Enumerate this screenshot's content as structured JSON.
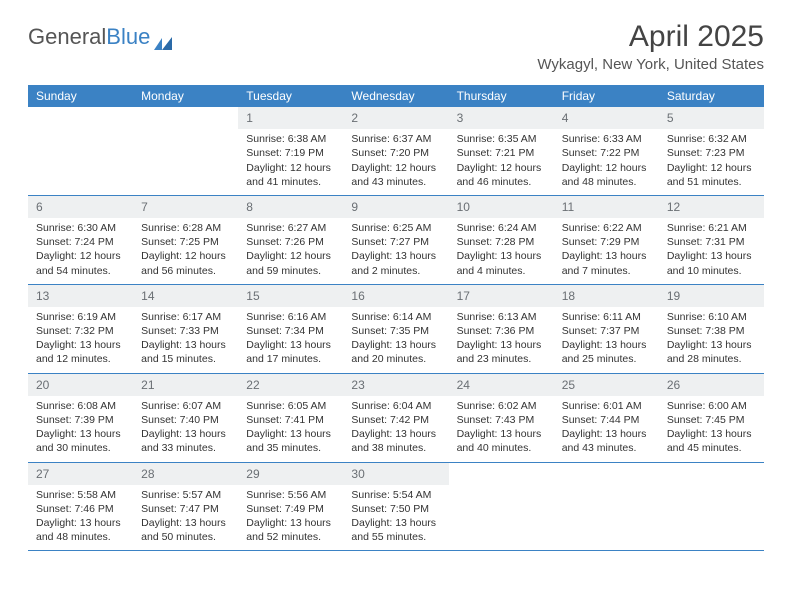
{
  "brand": {
    "part1": "General",
    "part2": "Blue"
  },
  "title": "April 2025",
  "location": "Wykagyl, New York, United States",
  "header_bg": "#3b82c4",
  "daynum_bg": "#eef0f1",
  "dow": [
    "Sunday",
    "Monday",
    "Tuesday",
    "Wednesday",
    "Thursday",
    "Friday",
    "Saturday"
  ],
  "weeks": [
    [
      null,
      null,
      {
        "n": "1",
        "sr": "6:38 AM",
        "ss": "7:19 PM",
        "dl": "12 hours and 41 minutes."
      },
      {
        "n": "2",
        "sr": "6:37 AM",
        "ss": "7:20 PM",
        "dl": "12 hours and 43 minutes."
      },
      {
        "n": "3",
        "sr": "6:35 AM",
        "ss": "7:21 PM",
        "dl": "12 hours and 46 minutes."
      },
      {
        "n": "4",
        "sr": "6:33 AM",
        "ss": "7:22 PM",
        "dl": "12 hours and 48 minutes."
      },
      {
        "n": "5",
        "sr": "6:32 AM",
        "ss": "7:23 PM",
        "dl": "12 hours and 51 minutes."
      }
    ],
    [
      {
        "n": "6",
        "sr": "6:30 AM",
        "ss": "7:24 PM",
        "dl": "12 hours and 54 minutes."
      },
      {
        "n": "7",
        "sr": "6:28 AM",
        "ss": "7:25 PM",
        "dl": "12 hours and 56 minutes."
      },
      {
        "n": "8",
        "sr": "6:27 AM",
        "ss": "7:26 PM",
        "dl": "12 hours and 59 minutes."
      },
      {
        "n": "9",
        "sr": "6:25 AM",
        "ss": "7:27 PM",
        "dl": "13 hours and 2 minutes."
      },
      {
        "n": "10",
        "sr": "6:24 AM",
        "ss": "7:28 PM",
        "dl": "13 hours and 4 minutes."
      },
      {
        "n": "11",
        "sr": "6:22 AM",
        "ss": "7:29 PM",
        "dl": "13 hours and 7 minutes."
      },
      {
        "n": "12",
        "sr": "6:21 AM",
        "ss": "7:31 PM",
        "dl": "13 hours and 10 minutes."
      }
    ],
    [
      {
        "n": "13",
        "sr": "6:19 AM",
        "ss": "7:32 PM",
        "dl": "13 hours and 12 minutes."
      },
      {
        "n": "14",
        "sr": "6:17 AM",
        "ss": "7:33 PM",
        "dl": "13 hours and 15 minutes."
      },
      {
        "n": "15",
        "sr": "6:16 AM",
        "ss": "7:34 PM",
        "dl": "13 hours and 17 minutes."
      },
      {
        "n": "16",
        "sr": "6:14 AM",
        "ss": "7:35 PM",
        "dl": "13 hours and 20 minutes."
      },
      {
        "n": "17",
        "sr": "6:13 AM",
        "ss": "7:36 PM",
        "dl": "13 hours and 23 minutes."
      },
      {
        "n": "18",
        "sr": "6:11 AM",
        "ss": "7:37 PM",
        "dl": "13 hours and 25 minutes."
      },
      {
        "n": "19",
        "sr": "6:10 AM",
        "ss": "7:38 PM",
        "dl": "13 hours and 28 minutes."
      }
    ],
    [
      {
        "n": "20",
        "sr": "6:08 AM",
        "ss": "7:39 PM",
        "dl": "13 hours and 30 minutes."
      },
      {
        "n": "21",
        "sr": "6:07 AM",
        "ss": "7:40 PM",
        "dl": "13 hours and 33 minutes."
      },
      {
        "n": "22",
        "sr": "6:05 AM",
        "ss": "7:41 PM",
        "dl": "13 hours and 35 minutes."
      },
      {
        "n": "23",
        "sr": "6:04 AM",
        "ss": "7:42 PM",
        "dl": "13 hours and 38 minutes."
      },
      {
        "n": "24",
        "sr": "6:02 AM",
        "ss": "7:43 PM",
        "dl": "13 hours and 40 minutes."
      },
      {
        "n": "25",
        "sr": "6:01 AM",
        "ss": "7:44 PM",
        "dl": "13 hours and 43 minutes."
      },
      {
        "n": "26",
        "sr": "6:00 AM",
        "ss": "7:45 PM",
        "dl": "13 hours and 45 minutes."
      }
    ],
    [
      {
        "n": "27",
        "sr": "5:58 AM",
        "ss": "7:46 PM",
        "dl": "13 hours and 48 minutes."
      },
      {
        "n": "28",
        "sr": "5:57 AM",
        "ss": "7:47 PM",
        "dl": "13 hours and 50 minutes."
      },
      {
        "n": "29",
        "sr": "5:56 AM",
        "ss": "7:49 PM",
        "dl": "13 hours and 52 minutes."
      },
      {
        "n": "30",
        "sr": "5:54 AM",
        "ss": "7:50 PM",
        "dl": "13 hours and 55 minutes."
      },
      null,
      null,
      null
    ]
  ],
  "labels": {
    "sunrise": "Sunrise:",
    "sunset": "Sunset:",
    "daylight": "Daylight:"
  }
}
